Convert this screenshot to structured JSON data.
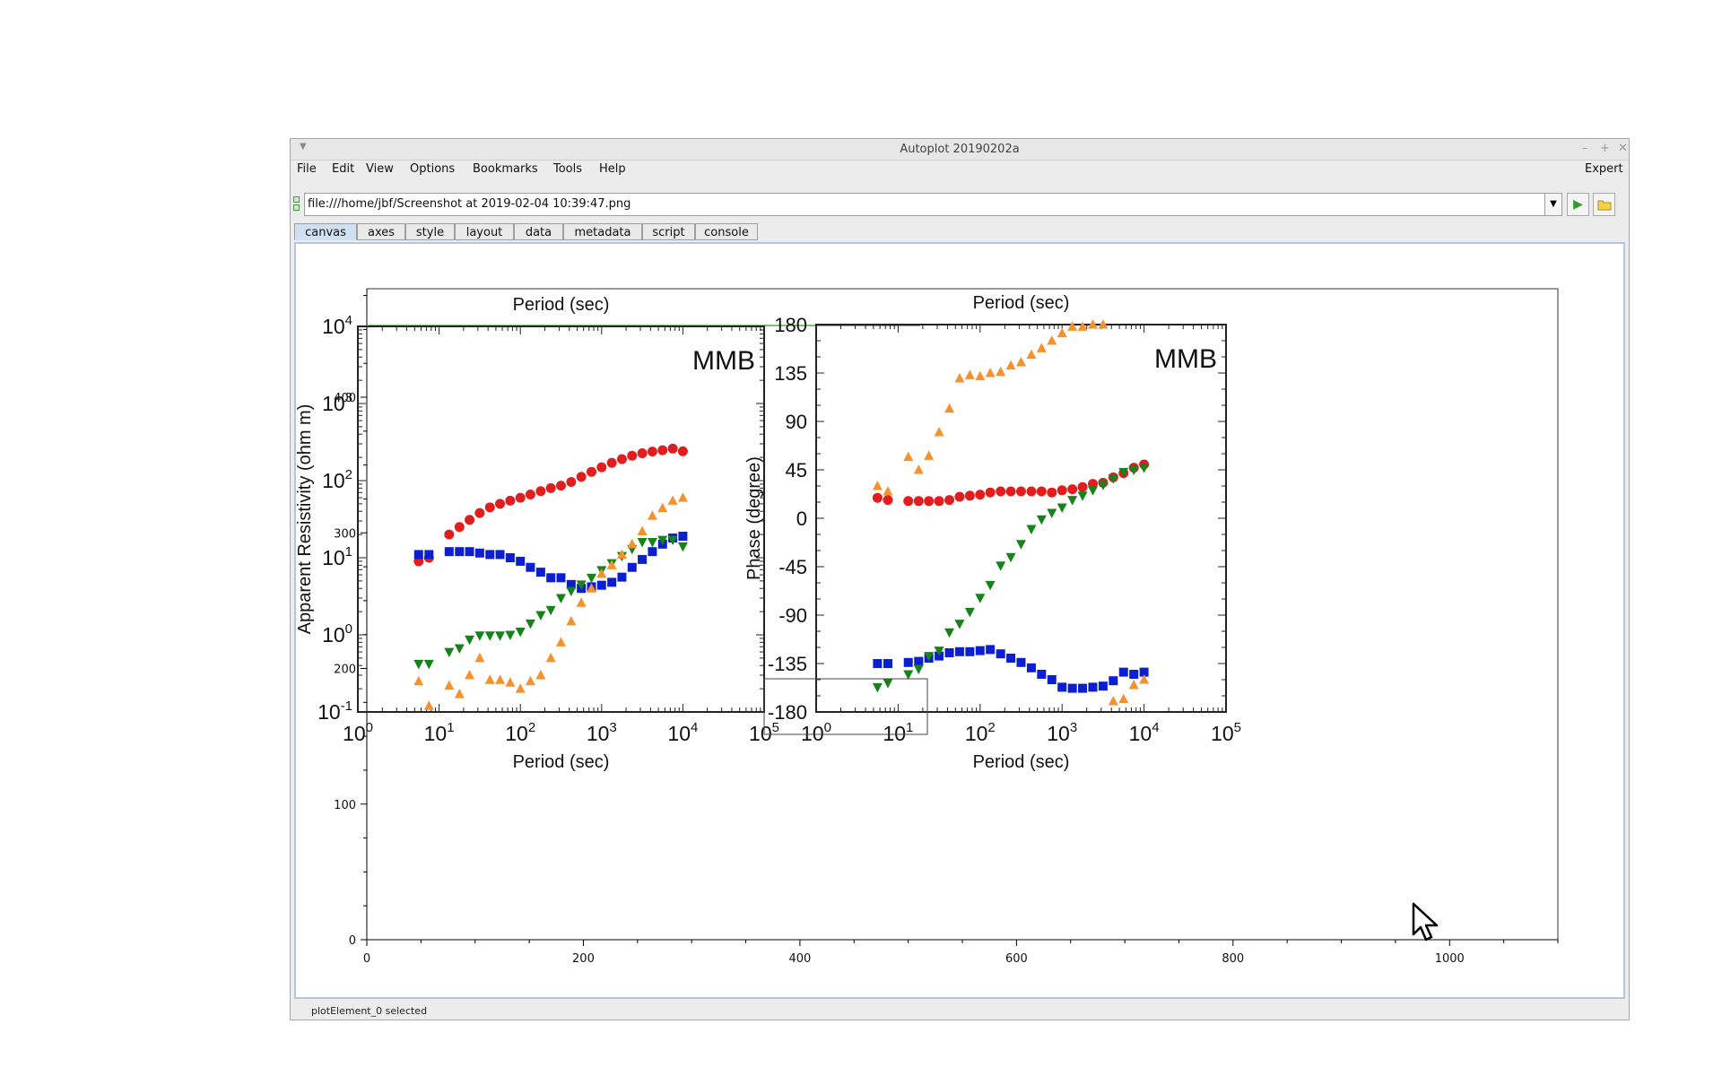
{
  "window": {
    "title": "Autoplot 20190202a",
    "controls": [
      "–",
      "+",
      "✕"
    ]
  },
  "menubar": {
    "items": [
      "File",
      "Edit",
      "View",
      "Options",
      "Bookmarks",
      "Tools",
      "Help"
    ],
    "expert_label": "Expert"
  },
  "url": {
    "value": "file:///home/jbf/Screenshot at 2019-02-04 10:39:47.png"
  },
  "icons": {
    "window_menu": "triangle-down-icon",
    "dropdown": "chevron-down-icon",
    "go": "play-icon",
    "browse": "folder-icon",
    "resource": "data-resource-icon",
    "cursor": "mouse-pointer-icon"
  },
  "tabs": [
    "canvas",
    "axes",
    "style",
    "layout",
    "data",
    "metadata",
    "script",
    "console"
  ],
  "active_tab": "canvas",
  "status": "plotElement_0 selected",
  "colors": {
    "tab_active": "#cfe0f2",
    "red_series": "#e11d1d",
    "blue_series": "#0b1fd0",
    "green_series": "#15821a",
    "orange_series": "#f5922f",
    "top_line": "#5aa84a"
  },
  "chart_data": [
    {
      "type": "scatter",
      "role": "autoplot-outer-axes",
      "xlim": [
        0,
        1100
      ],
      "ylim": [
        0,
        480
      ],
      "xticks": [
        0,
        200,
        400,
        600,
        800,
        1000
      ],
      "yticks": [
        0,
        100,
        200,
        300,
        400
      ],
      "xlabel": "",
      "ylabel": ""
    },
    {
      "type": "scatter",
      "role": "left-inset-image",
      "title": "Period (sec)",
      "annotation": "MMB",
      "xlabel": "Period (sec)",
      "ylabel": "Apparent Resistivity (ohm m)",
      "xscale": "log",
      "yscale": "log",
      "xlim": [
        1,
        100000
      ],
      "ylim": [
        0.1,
        10000
      ],
      "xticks": [
        {
          "base": "10",
          "exp": "0"
        },
        {
          "base": "10",
          "exp": "1"
        },
        {
          "base": "10",
          "exp": "2"
        },
        {
          "base": "10",
          "exp": "3"
        },
        {
          "base": "10",
          "exp": "4"
        },
        {
          "base": "10",
          "exp": "5"
        }
      ],
      "yticks": [
        {
          "base": "10",
          "exp": "-1"
        },
        {
          "base": "10",
          "exp": "0"
        },
        {
          "base": "10",
          "exp": "1"
        },
        {
          "base": "10",
          "exp": "2"
        },
        {
          "base": "10",
          "exp": "3"
        },
        {
          "base": "10",
          "exp": "4"
        }
      ],
      "series": [
        {
          "marker": "circle",
          "color": "#e11d1d",
          "x": [
            5.6,
            7.5,
            13.3,
            17.8,
            23.7,
            31.6,
            42.2,
            56.2,
            75,
            100,
            133,
            178,
            237,
            316,
            422,
            562,
            750,
            1000,
            1334,
            1778,
            2371,
            3162,
            4217,
            5623,
            7499,
            10000
          ],
          "y": [
            9,
            10,
            20,
            25,
            31,
            38,
            45,
            50,
            55,
            60,
            66,
            73,
            80,
            86,
            96,
            112,
            130,
            149,
            170,
            190,
            210,
            226,
            238,
            248,
            260,
            240
          ]
        },
        {
          "marker": "square",
          "color": "#0b1fd0",
          "x": [
            5.6,
            7.5,
            13.3,
            17.8,
            23.7,
            31.6,
            42.2,
            56.2,
            75,
            100,
            133,
            178,
            237,
            316,
            422,
            562,
            750,
            1000,
            1334,
            1778,
            2371,
            3162,
            4217,
            5623,
            7499,
            10000
          ],
          "y": [
            11,
            11,
            12,
            12,
            12,
            11.5,
            11,
            11,
            10,
            9,
            7.5,
            6.5,
            5.5,
            5.5,
            4.5,
            4,
            4.2,
            4.4,
            4.8,
            5.6,
            7.5,
            9.5,
            12,
            15,
            18,
            19
          ]
        },
        {
          "marker": "triangle-down",
          "color": "#15821a",
          "x": [
            5.6,
            7.5,
            13.3,
            17.8,
            23.7,
            31.6,
            42.2,
            56.2,
            75,
            100,
            133,
            178,
            237,
            316,
            422,
            562,
            750,
            1000,
            1334,
            1778,
            2371,
            3162,
            4217,
            5623,
            7499,
            10000
          ],
          "y": [
            0.42,
            0.42,
            0.6,
            0.67,
            0.87,
            0.98,
            0.98,
            0.98,
            1,
            1.1,
            1.4,
            1.8,
            2.1,
            3,
            3.7,
            4.5,
            5.5,
            6.9,
            8.5,
            10.5,
            13,
            16,
            16,
            17,
            17,
            14
          ]
        },
        {
          "marker": "triangle-up",
          "color": "#f5922f",
          "x": [
            5.6,
            7.5,
            13.3,
            17.8,
            23.7,
            31.6,
            42.2,
            56.2,
            75,
            100,
            133,
            178,
            237,
            316,
            422,
            562,
            750,
            1000,
            1334,
            1778,
            2371,
            3162,
            4217,
            5623,
            7499,
            10000
          ],
          "y": [
            0.25,
            0.12,
            0.22,
            0.17,
            0.3,
            0.5,
            0.26,
            0.26,
            0.24,
            0.2,
            0.25,
            0.3,
            0.5,
            0.8,
            1.5,
            2.6,
            4,
            6.2,
            8,
            11,
            15,
            22,
            35,
            44,
            55,
            60
          ]
        }
      ]
    },
    {
      "type": "scatter",
      "role": "right-inset-image",
      "title": "Period (sec)",
      "annotation": "MMB",
      "xlabel": "Period (sec)",
      "ylabel": "Phase (degree)",
      "xscale": "log",
      "xlim": [
        1,
        100000
      ],
      "ylim": [
        -180,
        180
      ],
      "xticks": [
        {
          "base": "10",
          "exp": "0"
        },
        {
          "base": "10",
          "exp": "1"
        },
        {
          "base": "10",
          "exp": "2"
        },
        {
          "base": "10",
          "exp": "3"
        },
        {
          "base": "10",
          "exp": "4"
        },
        {
          "base": "10",
          "exp": "5"
        }
      ],
      "yticks": [
        "180",
        "135",
        "90",
        "45",
        "0",
        "-45",
        "-90",
        "-135",
        "-180"
      ],
      "series": [
        {
          "marker": "circle",
          "color": "#e11d1d",
          "x": [
            5.6,
            7.5,
            13.3,
            17.8,
            23.7,
            31.6,
            42.2,
            56.2,
            75,
            100,
            133,
            178,
            237,
            316,
            422,
            562,
            750,
            1000,
            1334,
            1778,
            2371,
            3162,
            4217,
            5623,
            7499,
            10000
          ],
          "y": [
            19,
            17,
            16,
            16,
            16,
            16,
            17,
            20,
            21,
            22,
            24,
            25,
            25,
            25,
            25,
            25,
            24,
            26,
            27,
            29,
            32,
            33,
            38,
            42,
            47,
            50
          ]
        },
        {
          "marker": "square",
          "color": "#0b1fd0",
          "x": [
            5.6,
            7.5,
            13.3,
            17.8,
            23.7,
            31.6,
            42.2,
            56.2,
            75,
            100,
            133,
            178,
            237,
            316,
            422,
            562,
            750,
            1000,
            1334,
            1778,
            2371,
            3162,
            4217,
            5623,
            7499,
            10000
          ],
          "y": [
            -135,
            -135,
            -134,
            -133,
            -130,
            -128,
            -125,
            -124,
            -124,
            -123,
            -122,
            -126,
            -130,
            -134,
            -139,
            -145,
            -150,
            -157,
            -158,
            -158,
            -157,
            -156,
            -151,
            -143,
            -145,
            -143
          ]
        },
        {
          "marker": "triangle-down",
          "color": "#15821a",
          "x": [
            5.6,
            7.5,
            13.3,
            17.8,
            23.7,
            31.6,
            42.2,
            56.2,
            75,
            100,
            133,
            178,
            237,
            316,
            422,
            562,
            750,
            1000,
            1334,
            1778,
            2371,
            3162,
            4217,
            5623,
            7499,
            10000
          ],
          "y": [
            -157,
            -153,
            -145,
            -140,
            -128,
            -123,
            -106,
            -98,
            -87,
            -74,
            -62,
            -44,
            -36,
            -24,
            -10,
            -1,
            5,
            10,
            17,
            21,
            26,
            31,
            37,
            43,
            45,
            47
          ]
        },
        {
          "marker": "triangle-up",
          "color": "#f5922f",
          "x": [
            5.6,
            7.5,
            13.3,
            17.8,
            23.7,
            31.6,
            42.2,
            56.2,
            75,
            100,
            133,
            178,
            237,
            316,
            422,
            562,
            750,
            1000,
            1334,
            1778,
            2371,
            3162,
            4217,
            5623,
            7499,
            10000
          ],
          "y": [
            30,
            25,
            57,
            45,
            58,
            80,
            102,
            130,
            133,
            132,
            135,
            136,
            142,
            145,
            152,
            158,
            165,
            172,
            178,
            178,
            180,
            180,
            -170,
            -168,
            -155,
            -150
          ]
        }
      ]
    }
  ],
  "inset_text": {
    "left_top_label": "Period (sec)",
    "right_top_label": "Period (sec)"
  }
}
